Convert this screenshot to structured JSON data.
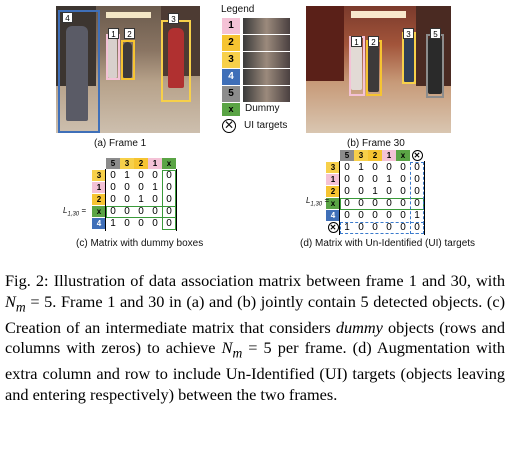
{
  "legend": {
    "title": "Legend",
    "items": [
      {
        "label": "1",
        "color": "#f4c2d6"
      },
      {
        "label": "2",
        "color": "#f6c431"
      },
      {
        "label": "3",
        "color": "#f7d04a"
      },
      {
        "label": "4",
        "color": "#3f6fb8"
      },
      {
        "label": "5",
        "color": "#8c8c8c"
      }
    ],
    "dummy_label": "Dummy",
    "dummy_symbol": "x",
    "ui_label": "UI targets",
    "ui_symbol": "⊗"
  },
  "frame1": {
    "caption": "(a) Frame  1",
    "tags": [
      "4",
      "1",
      "2",
      "3"
    ]
  },
  "frame30": {
    "caption": "(b) Frame  30",
    "tags": [
      "1",
      "2",
      "3",
      "5"
    ]
  },
  "matrix_c": {
    "caption": "(c) Matrix with dummy boxes",
    "label": "L",
    "label_sub": "1,30",
    "col_headers": [
      "5",
      "3",
      "2",
      "1",
      "x"
    ],
    "row_headers": [
      "3",
      "1",
      "2",
      "x",
      "4"
    ],
    "rows": [
      [
        "0",
        "1",
        "0",
        "0",
        "0"
      ],
      [
        "0",
        "0",
        "0",
        "1",
        "0"
      ],
      [
        "0",
        "0",
        "1",
        "0",
        "0"
      ],
      [
        "0",
        "0",
        "0",
        "0",
        "0"
      ],
      [
        "1",
        "0",
        "0",
        "0",
        "0"
      ]
    ]
  },
  "matrix_d": {
    "caption": "(d) Matrix with Un-Identified (UI) targets",
    "label": "L",
    "label_sub": "1,30",
    "col_headers": [
      "5",
      "3",
      "2",
      "1",
      "x",
      "⊗"
    ],
    "row_headers": [
      "3",
      "1",
      "2",
      "x",
      "4",
      "⊗"
    ],
    "rows": [
      [
        "0",
        "1",
        "0",
        "0",
        "0",
        "0"
      ],
      [
        "0",
        "0",
        "0",
        "1",
        "0",
        "0"
      ],
      [
        "0",
        "0",
        "1",
        "0",
        "0",
        "0"
      ],
      [
        "0",
        "0",
        "0",
        "0",
        "0",
        "0"
      ],
      [
        "0",
        "0",
        "0",
        "0",
        "0",
        "1"
      ],
      [
        "1",
        "0",
        "0",
        "0",
        "0",
        "0"
      ]
    ]
  },
  "figure_caption": {
    "part1": "Fig. 2: Illustration of data association matrix between frame 1 and 30, with ",
    "nm": "N",
    "nm_sub": "m",
    "part2": " = 5. Frame 1 and 30 in (a) and (b) jointly contain 5 detected objects. (c) Creation of an intermediate matrix that considers ",
    "dummy_word": "dummy",
    "part3": " objects (rows and columns with zeros) to achieve ",
    "part4": " = 5 per frame. (d) Augmentation with extra column and row to include Un-Identified (UI) targets (objects leaving and entering respectively) between the two frames."
  }
}
